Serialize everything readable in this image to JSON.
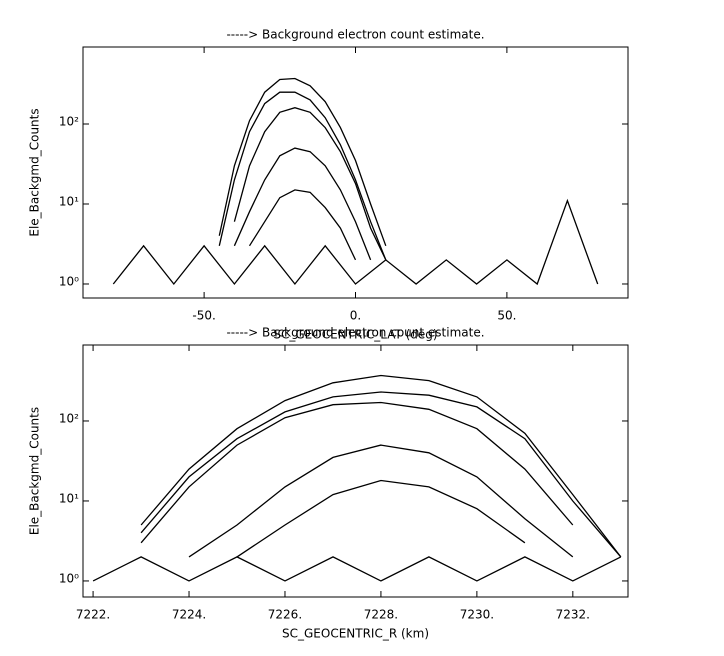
{
  "chart_data": [
    {
      "type": "line",
      "title": "-----> Background electron count estimate.",
      "xlabel": "SC_GEOCENTRIC_LAT (deg)",
      "ylabel": "Ele_Backgmd_Counts",
      "xlim": [
        -90,
        90
      ],
      "ylim": [
        0.668,
        917
      ],
      "log_y": true,
      "xticks": [
        {
          "value": -50,
          "label": "-50."
        },
        {
          "value": 0,
          "label": "0."
        },
        {
          "value": 50,
          "label": "50."
        }
      ],
      "yticks": [
        {
          "value": 1,
          "label": "10⁰"
        },
        {
          "value": 10,
          "label": "10¹"
        },
        {
          "value": 100,
          "label": "10²"
        }
      ],
      "series": [
        {
          "color": "#000000",
          "x": [
            -80,
            -70,
            -60,
            -50,
            -40,
            -30,
            -20,
            -10,
            0,
            10,
            20,
            30,
            40,
            50,
            60,
            70,
            80
          ],
          "values": [
            1,
            3,
            1,
            3,
            1,
            3,
            1,
            3,
            1,
            2,
            1,
            2,
            1,
            2,
            1,
            11,
            1
          ]
        },
        {
          "color": "#000000",
          "x": [
            -45,
            -40,
            -35,
            -30,
            -25,
            -20,
            -15,
            -10,
            -5,
            0,
            5,
            10
          ],
          "values": [
            4,
            30,
            110,
            250,
            360,
            370,
            300,
            190,
            90,
            35,
            10,
            3
          ]
        },
        {
          "color": "#000000",
          "x": [
            -45,
            -40,
            -35,
            -30,
            -25,
            -20,
            -15,
            -10,
            -5,
            0,
            5,
            10
          ],
          "values": [
            3,
            20,
            80,
            180,
            250,
            250,
            200,
            120,
            55,
            20,
            6,
            2
          ]
        },
        {
          "color": "#000000",
          "x": [
            -45,
            -40,
            -35,
            -30,
            -25,
            -20,
            -15,
            -10,
            -5,
            0,
            5,
            10
          ],
          "values": [
            null,
            6,
            30,
            80,
            140,
            160,
            140,
            90,
            45,
            18,
            5,
            2
          ]
        },
        {
          "color": "#000000",
          "x": [
            -45,
            -40,
            -35,
            -30,
            -25,
            -20,
            -15,
            -10,
            -5,
            0,
            5,
            10
          ],
          "values": [
            null,
            3,
            8,
            20,
            40,
            50,
            45,
            30,
            15,
            6,
            2,
            null
          ]
        },
        {
          "color": "#000000",
          "x": [
            -45,
            -40,
            -35,
            -30,
            -25,
            -20,
            -15,
            -10,
            -5,
            0,
            5,
            10
          ],
          "values": [
            null,
            null,
            3,
            6,
            12,
            15,
            14,
            9,
            5,
            2,
            null,
            null
          ]
        }
      ]
    },
    {
      "type": "line",
      "title": "-----> Background electron count estimate.",
      "xlabel": "SC_GEOCENTRIC_R (km)",
      "ylabel": "Ele_Backgmd_Counts",
      "xlim": [
        7221.79,
        7233.15
      ],
      "ylim": [
        0.63,
        891
      ],
      "log_y": true,
      "xticks": [
        {
          "value": 7222,
          "label": "7222."
        },
        {
          "value": 7224,
          "label": "7224."
        },
        {
          "value": 7226,
          "label": "7226."
        },
        {
          "value": 7228,
          "label": "7228."
        },
        {
          "value": 7230,
          "label": "7230."
        },
        {
          "value": 7232,
          "label": "7232."
        }
      ],
      "yticks": [
        {
          "value": 1,
          "label": "10⁰"
        },
        {
          "value": 10,
          "label": "10¹"
        },
        {
          "value": 100,
          "label": "10²"
        }
      ],
      "series": [
        {
          "color": "#000000",
          "x": [
            7222,
            7223,
            7224,
            7225,
            7226,
            7227,
            7228,
            7229,
            7230,
            7231,
            7232,
            7233
          ],
          "values": [
            1,
            2,
            1,
            2,
            1,
            2,
            1,
            2,
            1,
            2,
            1,
            2
          ]
        },
        {
          "color": "#000000",
          "x": [
            7223,
            7224,
            7225,
            7226,
            7227,
            7228,
            7229,
            7230,
            7231,
            7232,
            7233
          ],
          "values": [
            5,
            25,
            80,
            180,
            300,
            370,
            320,
            200,
            70,
            12,
            2
          ]
        },
        {
          "color": "#000000",
          "x": [
            7223,
            7224,
            7225,
            7226,
            7227,
            7228,
            7229,
            7230,
            7231,
            7232,
            7233
          ],
          "values": [
            4,
            20,
            60,
            130,
            200,
            230,
            210,
            150,
            60,
            10,
            2
          ]
        },
        {
          "color": "#000000",
          "x": [
            7223,
            7224,
            7225,
            7226,
            7227,
            7228,
            7229,
            7230,
            7231,
            7232,
            7233
          ],
          "values": [
            3,
            15,
            50,
            110,
            160,
            170,
            140,
            80,
            25,
            5,
            null
          ]
        },
        {
          "color": "#000000",
          "x": [
            7223,
            7224,
            7225,
            7226,
            7227,
            7228,
            7229,
            7230,
            7231,
            7232,
            7233
          ],
          "values": [
            null,
            2,
            5,
            15,
            35,
            50,
            40,
            20,
            6,
            2,
            null
          ]
        },
        {
          "color": "#000000",
          "x": [
            7223,
            7224,
            7225,
            7226,
            7227,
            7228,
            7229,
            7230,
            7231,
            7232,
            7233
          ],
          "values": [
            null,
            null,
            2,
            5,
            12,
            18,
            15,
            8,
            3,
            null,
            null
          ]
        }
      ]
    }
  ]
}
